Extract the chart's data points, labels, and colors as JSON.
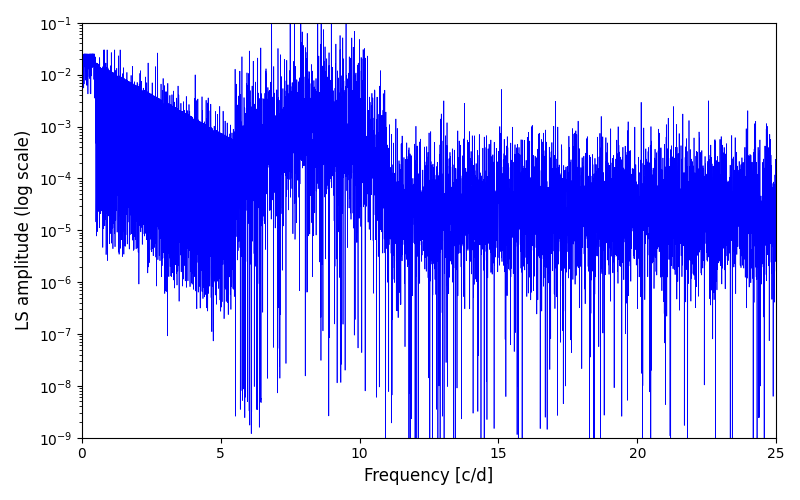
{
  "xlabel": "Frequency [c/d]",
  "ylabel": "LS amplitude (log scale)",
  "xlim": [
    0,
    25
  ],
  "ylim": [
    1e-09,
    0.1
  ],
  "line_color": "#0000ff",
  "line_width": 0.5,
  "background_color": "#ffffff",
  "freq_max": 25.0,
  "n_points": 8000,
  "seed": 7
}
